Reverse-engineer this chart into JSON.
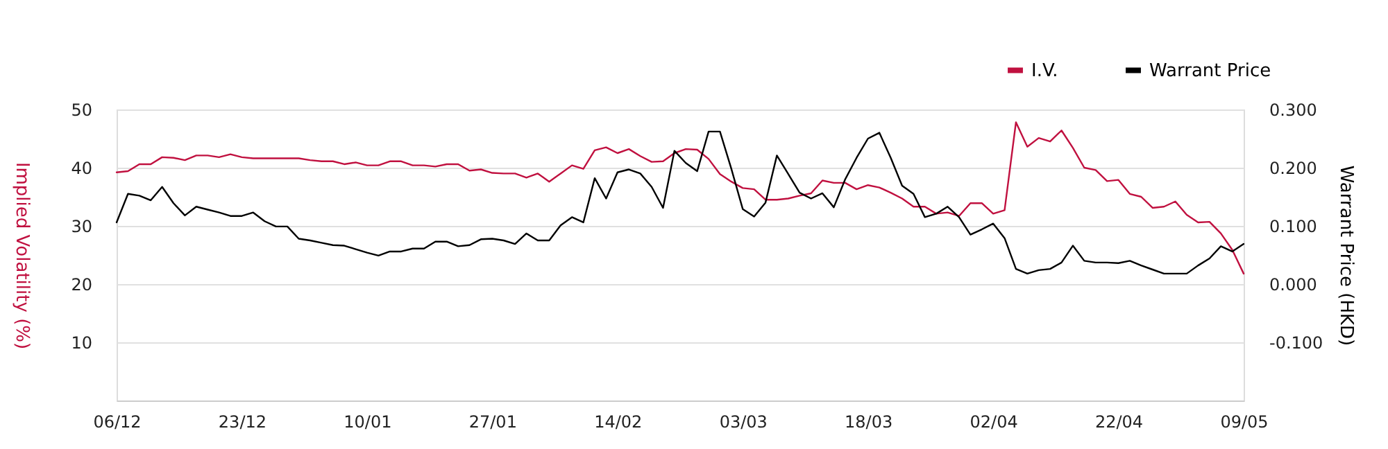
{
  "chart_data": {
    "type": "line",
    "categories": [
      "06/12",
      null,
      null,
      null,
      null,
      null,
      null,
      null,
      null,
      null,
      null,
      "23/12",
      null,
      null,
      null,
      null,
      null,
      null,
      null,
      null,
      null,
      null,
      "10/01",
      null,
      null,
      null,
      null,
      null,
      null,
      null,
      null,
      null,
      null,
      "27/01",
      null,
      null,
      null,
      null,
      null,
      null,
      null,
      null,
      null,
      null,
      "14/02",
      null,
      null,
      null,
      null,
      null,
      null,
      null,
      null,
      null,
      null,
      "03/03",
      null,
      null,
      null,
      null,
      null,
      null,
      null,
      null,
      null,
      null,
      "18/03",
      null,
      null,
      null,
      null,
      null,
      null,
      null,
      null,
      null,
      null,
      "02/04",
      null,
      null,
      null,
      null,
      null,
      null,
      null,
      null,
      null,
      null,
      "22/04",
      null,
      null,
      null,
      null,
      null,
      null,
      null,
      null,
      null,
      null,
      "09/05"
    ],
    "series": [
      {
        "name": "I.V.",
        "color": "#c0103f",
        "values": [
          39.2,
          39.4,
          40.6,
          40.6,
          41.8,
          41.7,
          41.3,
          42.1,
          42.1,
          41.8,
          42.3,
          41.8,
          41.6,
          41.6,
          41.6,
          41.6,
          41.6,
          41.3,
          41.1,
          41.1,
          40.6,
          40.9,
          40.4,
          40.4,
          41.1,
          41.1,
          40.4,
          40.4,
          40.2,
          40.6,
          40.6,
          39.5,
          39.7,
          39.1,
          39.0,
          39.0,
          38.3,
          39.0,
          37.6,
          39.0,
          40.4,
          39.8,
          43.0,
          43.5,
          42.5,
          43.2,
          42.0,
          41.0,
          41.1,
          42.5,
          43.2,
          43.1,
          41.5,
          38.9,
          37.6,
          36.5,
          36.3,
          34.5,
          34.5,
          34.7,
          35.2,
          35.6,
          37.8,
          37.4,
          37.4,
          36.3,
          37.0,
          36.6,
          35.7,
          34.7,
          33.3,
          33.3,
          32.1,
          32.3,
          31.7,
          33.9,
          33.9,
          32.1,
          32.7,
          47.8,
          43.6,
          45.1,
          44.5,
          46.4,
          43.4,
          40.0,
          39.6,
          37.7,
          37.9,
          35.5,
          35.0,
          33.1,
          33.3,
          34.2,
          31.9,
          30.6,
          30.7,
          28.7,
          25.9,
          21.8
        ]
      },
      {
        "name": "Warrant Price",
        "color": "#000000",
        "axis": "y2",
        "values": [
          0.106,
          0.155,
          0.152,
          0.144,
          0.167,
          0.139,
          0.118,
          0.133,
          0.128,
          0.123,
          0.117,
          0.117,
          0.123,
          0.108,
          0.099,
          0.099,
          0.078,
          0.075,
          0.071,
          0.067,
          0.066,
          0.06,
          0.054,
          0.049,
          0.056,
          0.056,
          0.061,
          0.061,
          0.073,
          0.073,
          0.065,
          0.067,
          0.077,
          0.078,
          0.075,
          0.069,
          0.087,
          0.075,
          0.075,
          0.101,
          0.115,
          0.106,
          0.182,
          0.147,
          0.192,
          0.197,
          0.19,
          0.167,
          0.131,
          0.229,
          0.208,
          0.194,
          0.262,
          0.262,
          0.198,
          0.129,
          0.116,
          0.14,
          0.221,
          0.189,
          0.157,
          0.147,
          0.156,
          0.132,
          0.18,
          0.217,
          0.25,
          0.26,
          0.217,
          0.169,
          0.155,
          0.115,
          0.121,
          0.133,
          0.115,
          0.085,
          0.094,
          0.104,
          0.079,
          0.026,
          0.018,
          0.024,
          0.026,
          0.037,
          0.066,
          0.04,
          0.037,
          0.037,
          0.036,
          0.04,
          0.032,
          0.025,
          0.018,
          0.018,
          0.018,
          0.032,
          0.044,
          0.065,
          0.056,
          0.069
        ]
      }
    ],
    "ylabel": "Implied Volatility (%)",
    "y2label": "Warrant Price (HKD)",
    "ylim": [
      0,
      50
    ],
    "yticks": [
      {
        "value": 0,
        "label": null
      },
      10,
      20,
      30,
      40,
      50
    ],
    "y2lim": [
      -0.2,
      0.3
    ],
    "y2ticks": [
      {
        "value": -0.1,
        "label": "-0.100"
      },
      {
        "value": 0,
        "label": "0.000"
      },
      {
        "value": 0.1,
        "label": "0.100"
      },
      {
        "value": 0.2,
        "label": "0.200"
      },
      {
        "value": 0.3,
        "label": "0.300"
      }
    ],
    "grid": "y",
    "legend": "top right"
  }
}
